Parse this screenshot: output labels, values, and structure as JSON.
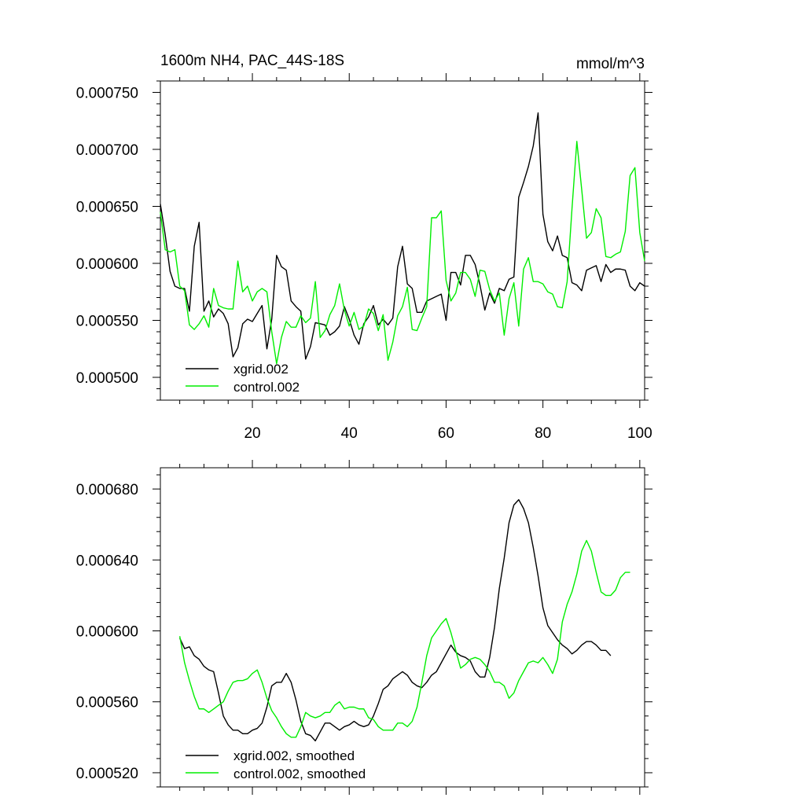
{
  "chart_data": [
    {
      "type": "line",
      "title": "1600m NH4, PAC_44S-18S",
      "units": "mmol/m^3",
      "xlim": [
        1,
        101
      ],
      "ylim": [
        0.00048,
        0.00076
      ],
      "y_ticks": [
        "0.000500",
        "0.000550",
        "0.000600",
        "0.000650",
        "0.000700",
        "0.000750"
      ],
      "y_tick_values": [
        0.0005,
        0.00055,
        0.0006,
        0.00065,
        0.0007,
        0.00075
      ],
      "x_ticks": [
        "20",
        "40",
        "60",
        "80",
        "100"
      ],
      "x_tick_values": [
        20,
        40,
        60,
        80,
        100
      ],
      "legend_position": "bottom-left",
      "series": [
        {
          "name": "xgrid.002",
          "color": "#000000",
          "values": [
            0.000652,
            0.000625,
            0.000593,
            0.00058,
            0.000578,
            0.000578,
            0.000558,
            0.000615,
            0.000636,
            0.000558,
            0.000567,
            0.000553,
            0.00056,
            0.000556,
            0.000547,
            0.000518,
            0.000526,
            0.000547,
            0.000551,
            0.000549,
            0.000556,
            0.000563,
            0.000525,
            0.000551,
            0.000607,
            0.000597,
            0.000594,
            0.000567,
            0.000562,
            0.000558,
            0.000516,
            0.000527,
            0.000548,
            0.000547,
            0.000546,
            0.000537,
            0.00054,
            0.000545,
            0.000562,
            0.000551,
            0.000537,
            0.000529,
            0.000547,
            0.000553,
            0.000563,
            0.000546,
            0.000551,
            0.000546,
            0.000552,
            0.000597,
            0.000615,
            0.000582,
            0.000578,
            0.000557,
            0.000557,
            0.000567,
            0.000569,
            0.000571,
            0.000573,
            0.00055,
            0.000592,
            0.000592,
            0.000581,
            0.000607,
            0.000607,
            0.000599,
            0.000581,
            0.000559,
            0.000574,
            0.000565,
            0.000578,
            0.000576,
            0.000586,
            0.000588,
            0.000658,
            0.000671,
            0.000685,
            0.000703,
            0.000732,
            0.000643,
            0.000619,
            0.000611,
            0.000624,
            0.000607,
            0.000605,
            0.000583,
            0.000581,
            0.000576,
            0.000594,
            0.000596,
            0.000598,
            0.000584,
            0.000599,
            0.000592,
            0.000595,
            0.000595,
            0.000594,
            0.00058,
            0.000576,
            0.000583,
            0.00058
          ]
        },
        {
          "name": "control.002",
          "color": "#00ee00",
          "values": [
            0.000645,
            0.000612,
            0.00061,
            0.000612,
            0.00058,
            0.000576,
            0.000546,
            0.000542,
            0.000547,
            0.000554,
            0.000544,
            0.000578,
            0.000563,
            0.000561,
            0.00056,
            0.00056,
            0.000602,
            0.000575,
            0.00058,
            0.000567,
            0.000575,
            0.000578,
            0.000575,
            0.00054,
            0.000512,
            0.000535,
            0.000549,
            0.000544,
            0.000544,
            0.000554,
            0.000548,
            0.000552,
            0.000584,
            0.000535,
            0.000541,
            0.000555,
            0.000563,
            0.000582,
            0.000559,
            0.000545,
            0.000557,
            0.000542,
            0.000545,
            0.00056,
            0.000556,
            0.000541,
            0.000555,
            0.000515,
            0.000531,
            0.000554,
            0.000562,
            0.000579,
            0.000542,
            0.000541,
            0.000552,
            0.000562,
            0.00064,
            0.00064,
            0.000646,
            0.000585,
            0.000567,
            0.000574,
            0.000592,
            0.000592,
            0.000586,
            0.000571,
            0.000594,
            0.000593,
            0.000577,
            0.000567,
            0.000574,
            0.000537,
            0.000569,
            0.000583,
            0.000545,
            0.000595,
            0.000605,
            0.000584,
            0.000584,
            0.000582,
            0.000575,
            0.000573,
            0.000562,
            0.000561,
            0.000584,
            0.000648,
            0.000707,
            0.000665,
            0.000622,
            0.000627,
            0.000648,
            0.00064,
            0.000606,
            0.000605,
            0.000608,
            0.00061,
            0.000628,
            0.000677,
            0.000684,
            0.000627,
            0.000602
          ]
        }
      ]
    },
    {
      "type": "line",
      "title": "",
      "units": "",
      "xlim": [
        1,
        101
      ],
      "ylim": [
        0.000512,
        0.000692
      ],
      "y_ticks": [
        "0.000520",
        "0.000560",
        "0.000600",
        "0.000640",
        "0.000680"
      ],
      "y_tick_values": [
        0.00052,
        0.00056,
        0.0006,
        0.00064,
        0.00068
      ],
      "x_tick_values": [
        20,
        40,
        60,
        80,
        100
      ],
      "legend_position": "bottom-left",
      "series": [
        {
          "name": "xgrid.002, smoothed",
          "color": "#000000",
          "x_start": 5,
          "values": [
            0.000596,
            0.00059,
            0.000591,
            0.000586,
            0.000584,
            0.00058,
            0.000578,
            0.000577,
            0.000565,
            0.000552,
            0.000547,
            0.000544,
            0.000544,
            0.000542,
            0.000542,
            0.000544,
            0.000545,
            0.000548,
            0.000557,
            0.000569,
            0.000571,
            0.000571,
            0.000576,
            0.000571,
            0.000561,
            0.000549,
            0.000542,
            0.000541,
            0.000538,
            0.000543,
            0.000548,
            0.000548,
            0.000546,
            0.000544,
            0.000546,
            0.000547,
            0.000549,
            0.000547,
            0.000546,
            0.000547,
            0.000552,
            0.000559,
            0.000567,
            0.000569,
            0.000573,
            0.000575,
            0.000577,
            0.000575,
            0.000571,
            0.000569,
            0.000568,
            0.000571,
            0.000575,
            0.000577,
            0.000582,
            0.000587,
            0.000592,
            0.000588,
            0.000586,
            0.000585,
            0.000583,
            0.000577,
            0.000574,
            0.000574,
            0.000585,
            0.000602,
            0.000624,
            0.000641,
            0.000661,
            0.000671,
            0.000674,
            0.000669,
            0.000661,
            0.000647,
            0.000631,
            0.000613,
            0.000603,
            0.000599,
            0.000595,
            0.000592,
            0.00059,
            0.000587,
            0.000589,
            0.000592,
            0.000594,
            0.000594,
            0.000592,
            0.000589,
            0.000589,
            0.000586
          ]
        },
        {
          "name": "control.002, smoothed",
          "color": "#00ee00",
          "x_start": 5,
          "values": [
            0.000597,
            0.000582,
            0.000572,
            0.000563,
            0.000556,
            0.000556,
            0.000554,
            0.000556,
            0.000558,
            0.00056,
            0.000566,
            0.000571,
            0.000572,
            0.000572,
            0.000573,
            0.000576,
            0.000578,
            0.000571,
            0.000562,
            0.000555,
            0.000551,
            0.000546,
            0.000542,
            0.00054,
            0.00054,
            0.000546,
            0.000554,
            0.000552,
            0.000551,
            0.000552,
            0.000554,
            0.000554,
            0.000558,
            0.00056,
            0.000556,
            0.000557,
            0.000557,
            0.000556,
            0.000556,
            0.000551,
            0.00055,
            0.000546,
            0.000544,
            0.000544,
            0.000544,
            0.000548,
            0.000548,
            0.000546,
            0.000549,
            0.000557,
            0.000571,
            0.000586,
            0.000596,
            0.0006,
            0.000604,
            0.000607,
            0.000599,
            0.000589,
            0.000579,
            0.000581,
            0.000584,
            0.000585,
            0.000584,
            0.000581,
            0.000577,
            0.000571,
            0.000571,
            0.000569,
            0.000562,
            0.000565,
            0.000572,
            0.000577,
            0.000582,
            0.000583,
            0.000582,
            0.000585,
            0.000581,
            0.000576,
            0.000584,
            0.000605,
            0.000615,
            0.000622,
            0.000632,
            0.000645,
            0.000651,
            0.000645,
            0.000633,
            0.000622,
            0.00062,
            0.00062,
            0.000623,
            0.00063,
            0.000633,
            0.000633
          ]
        }
      ]
    }
  ]
}
